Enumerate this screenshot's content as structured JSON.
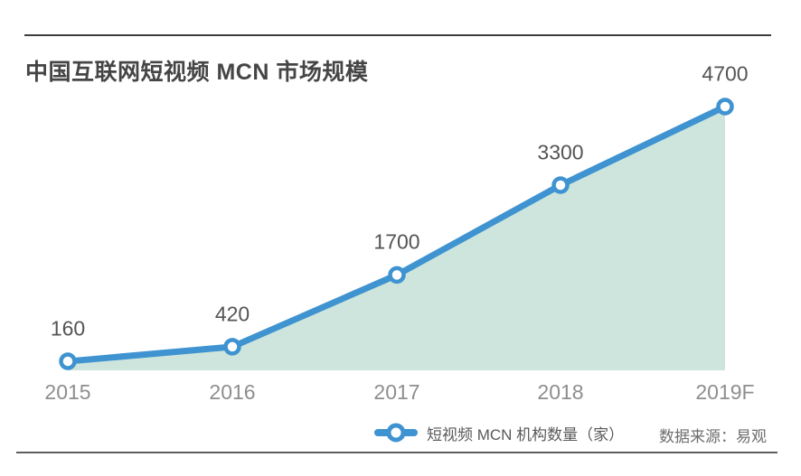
{
  "header": {
    "title": "中国互联网短视频 MCN 市场规模"
  },
  "chart_data": {
    "type": "area",
    "title": "中国互联网短视频 MCN 市场规模",
    "categories": [
      "2015",
      "2016",
      "2017",
      "2018",
      "2019F"
    ],
    "series": [
      {
        "name": "短视频 MCN 机构数量（家）",
        "values": [
          160,
          420,
          1700,
          3300,
          4700
        ]
      }
    ],
    "xlabel": "",
    "ylabel": "",
    "ylim": [
      0,
      4700
    ],
    "grid": false,
    "data_labels": true,
    "legend_position": "bottom",
    "colors": {
      "line": "#3e93d0",
      "area": "#cde5dc",
      "marker_fill": "#ffffff",
      "value_label": "#545454",
      "axis_label": "#8e8e8e"
    }
  },
  "legend": {
    "label": "短视频 MCN 机构数量（家）"
  },
  "source": {
    "label": "数据来源：易观"
  }
}
